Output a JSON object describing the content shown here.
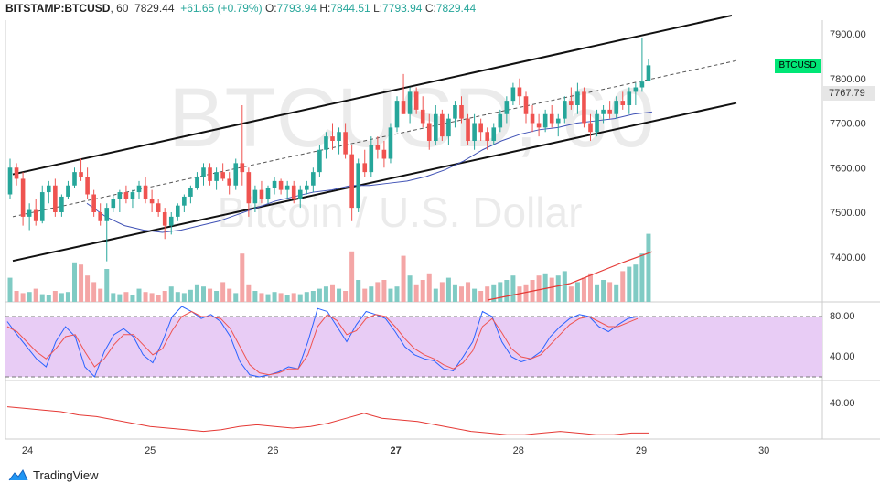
{
  "header": {
    "symbol": "BITSTAMP:BTCUSD",
    "interval": ", 60",
    "last": "7829.44",
    "change": "+61.65 (+0.79%)",
    "o_label": "O:",
    "o_value": "7793.94",
    "h_label": "H:",
    "h_value": "7844.51",
    "l_label": "L:",
    "l_value": "7793.94",
    "c_label": "C:",
    "c_value": "7829.44"
  },
  "watermark": {
    "symbol": "BTCUSD, 60",
    "description": "Bitcoin / U.S. Dollar"
  },
  "badges": {
    "ticker": "BTCUSD",
    "price": "7767.79"
  },
  "brand": {
    "name": "TradingView"
  },
  "colors": {
    "up": "#26a69a",
    "down": "#ef5350",
    "vol_up": "#80cbc4",
    "vol_down": "#f4a6a6",
    "ma": "#3f51b5",
    "stoch_k": "#2962ff",
    "stoch_d": "#ef5350",
    "rsi_band": "#e1bee7"
  },
  "chart_data": {
    "type": "candlestick",
    "price_axis": {
      "min": 7300,
      "max": 7940,
      "ticks": [
        "7900.00",
        "7800.00",
        "7700.00",
        "7600.00",
        "7500.00",
        "7400.00"
      ]
    },
    "time_axis": {
      "ticks": [
        "24",
        "25",
        "26",
        "27",
        "28",
        "29",
        "30"
      ]
    },
    "candles_ohlc": [
      [
        7540,
        7620,
        7530,
        7600
      ],
      [
        7600,
        7610,
        7560,
        7575
      ],
      [
        7575,
        7590,
        7470,
        7490
      ],
      [
        7490,
        7520,
        7460,
        7505
      ],
      [
        7505,
        7530,
        7470,
        7480
      ],
      [
        7480,
        7560,
        7475,
        7545
      ],
      [
        7545,
        7570,
        7520,
        7560
      ],
      [
        7560,
        7575,
        7490,
        7500
      ],
      [
        7500,
        7540,
        7490,
        7535
      ],
      [
        7535,
        7570,
        7530,
        7560
      ],
      [
        7560,
        7600,
        7555,
        7590
      ],
      [
        7590,
        7620,
        7570,
        7580
      ],
      [
        7580,
        7600,
        7530,
        7540
      ],
      [
        7540,
        7550,
        7490,
        7500
      ],
      [
        7500,
        7520,
        7470,
        7480
      ],
      [
        7480,
        7520,
        7390,
        7510
      ],
      [
        7510,
        7540,
        7500,
        7530
      ],
      [
        7530,
        7550,
        7500,
        7545
      ],
      [
        7545,
        7560,
        7520,
        7530
      ],
      [
        7530,
        7550,
        7510,
        7545
      ],
      [
        7545,
        7570,
        7530,
        7560
      ],
      [
        7560,
        7580,
        7520,
        7530
      ],
      [
        7530,
        7550,
        7500,
        7520
      ],
      [
        7520,
        7530,
        7490,
        7500
      ],
      [
        7500,
        7510,
        7440,
        7470
      ],
      [
        7470,
        7500,
        7450,
        7490
      ],
      [
        7490,
        7520,
        7480,
        7515
      ],
      [
        7515,
        7540,
        7500,
        7535
      ],
      [
        7535,
        7560,
        7520,
        7555
      ],
      [
        7555,
        7590,
        7550,
        7580
      ],
      [
        7580,
        7610,
        7560,
        7600
      ],
      [
        7600,
        7610,
        7560,
        7570
      ],
      [
        7570,
        7600,
        7550,
        7590
      ],
      [
        7590,
        7610,
        7570,
        7575
      ],
      [
        7575,
        7590,
        7540,
        7560
      ],
      [
        7560,
        7620,
        7550,
        7610
      ],
      [
        7610,
        7740,
        7560,
        7590
      ],
      [
        7590,
        7600,
        7490,
        7520
      ],
      [
        7520,
        7560,
        7500,
        7550
      ],
      [
        7550,
        7570,
        7520,
        7530
      ],
      [
        7530,
        7560,
        7520,
        7555
      ],
      [
        7555,
        7580,
        7540,
        7570
      ],
      [
        7570,
        7575,
        7540,
        7550
      ],
      [
        7550,
        7570,
        7530,
        7560
      ],
      [
        7560,
        7570,
        7520,
        7530
      ],
      [
        7530,
        7560,
        7510,
        7550
      ],
      [
        7550,
        7570,
        7540,
        7560
      ],
      [
        7560,
        7600,
        7545,
        7590
      ],
      [
        7590,
        7650,
        7580,
        7640
      ],
      [
        7640,
        7680,
        7620,
        7670
      ],
      [
        7670,
        7700,
        7640,
        7660
      ],
      [
        7660,
        7690,
        7630,
        7680
      ],
      [
        7680,
        7700,
        7620,
        7630
      ],
      [
        7630,
        7650,
        7480,
        7510
      ],
      [
        7510,
        7620,
        7500,
        7610
      ],
      [
        7610,
        7640,
        7580,
        7590
      ],
      [
        7590,
        7670,
        7580,
        7650
      ],
      [
        7650,
        7670,
        7620,
        7640
      ],
      [
        7640,
        7660,
        7600,
        7620
      ],
      [
        7620,
        7700,
        7610,
        7690
      ],
      [
        7690,
        7760,
        7680,
        7750
      ],
      [
        7750,
        7810,
        7720,
        7720
      ],
      [
        7720,
        7780,
        7700,
        7770
      ],
      [
        7770,
        7780,
        7720,
        7730
      ],
      [
        7730,
        7760,
        7690,
        7700
      ],
      [
        7700,
        7720,
        7640,
        7660
      ],
      [
        7660,
        7740,
        7650,
        7720
      ],
      [
        7720,
        7730,
        7660,
        7670
      ],
      [
        7670,
        7720,
        7650,
        7710
      ],
      [
        7710,
        7750,
        7690,
        7740
      ],
      [
        7740,
        7760,
        7700,
        7710
      ],
      [
        7710,
        7720,
        7650,
        7660
      ],
      [
        7660,
        7720,
        7640,
        7700
      ],
      [
        7700,
        7710,
        7660,
        7680
      ],
      [
        7680,
        7690,
        7640,
        7660
      ],
      [
        7660,
        7700,
        7650,
        7690
      ],
      [
        7690,
        7730,
        7680,
        7720
      ],
      [
        7720,
        7760,
        7700,
        7750
      ],
      [
        7750,
        7790,
        7740,
        7780
      ],
      [
        7780,
        7800,
        7740,
        7760
      ],
      [
        7760,
        7770,
        7700,
        7720
      ],
      [
        7720,
        7740,
        7680,
        7700
      ],
      [
        7700,
        7720,
        7670,
        7690
      ],
      [
        7690,
        7730,
        7680,
        7720
      ],
      [
        7720,
        7740,
        7690,
        7700
      ],
      [
        7700,
        7720,
        7670,
        7710
      ],
      [
        7710,
        7760,
        7700,
        7750
      ],
      [
        7750,
        7780,
        7730,
        7740
      ],
      [
        7740,
        7790,
        7720,
        7770
      ],
      [
        7770,
        7780,
        7690,
        7700
      ],
      [
        7700,
        7720,
        7660,
        7680
      ],
      [
        7680,
        7730,
        7670,
        7720
      ],
      [
        7720,
        7740,
        7700,
        7730
      ],
      [
        7730,
        7750,
        7710,
        7720
      ],
      [
        7720,
        7760,
        7710,
        7750
      ],
      [
        7750,
        7770,
        7730,
        7740
      ],
      [
        7740,
        7780,
        7720,
        7770
      ],
      [
        7770,
        7790,
        7740,
        7780
      ],
      [
        7780,
        7890,
        7770,
        7793
      ],
      [
        7793.94,
        7844.51,
        7793.94,
        7829.44
      ]
    ],
    "volume": [
      22,
      10,
      8,
      9,
      12,
      7,
      6,
      10,
      8,
      9,
      36,
      34,
      24,
      18,
      12,
      30,
      8,
      7,
      9,
      6,
      12,
      9,
      8,
      6,
      10,
      14,
      9,
      8,
      11,
      16,
      14,
      12,
      10,
      18,
      12,
      8,
      44,
      16,
      10,
      8,
      7,
      9,
      8,
      6,
      8,
      7,
      9,
      10,
      12,
      14,
      16,
      12,
      10,
      46,
      20,
      12,
      14,
      18,
      20,
      12,
      14,
      42,
      24,
      16,
      20,
      26,
      12,
      18,
      22,
      16,
      14,
      18,
      12,
      10,
      14,
      16,
      18,
      20,
      24,
      14,
      16,
      20,
      24,
      26,
      22,
      24,
      28,
      14,
      18,
      22,
      26,
      16,
      20,
      18,
      16,
      28,
      32,
      34,
      44,
      62
    ],
    "volume_ma": [
      0,
      5,
      10,
      15,
      25,
      35,
      44
    ],
    "trend_channel": {
      "upper": [
        7585,
        7935
      ],
      "lower": [
        7395,
        7745
      ],
      "mid": [
        7490,
        7840
      ]
    },
    "moving_average": [
      7520,
      7490,
      7470,
      7460,
      7455,
      7460,
      7470,
      7480,
      7495,
      7510,
      7525,
      7535,
      7545,
      7550,
      7560,
      7560,
      7565,
      7570,
      7580,
      7595,
      7615,
      7640,
      7660,
      7675,
      7685,
      7690,
      7700,
      7705,
      7710,
      7720,
      7725
    ],
    "stoch_axis": [
      "80.00",
      "40.00"
    ],
    "stoch_k": [
      75,
      62,
      50,
      38,
      30,
      55,
      70,
      60,
      30,
      20,
      45,
      62,
      68,
      60,
      42,
      34,
      55,
      80,
      90,
      85,
      78,
      82,
      75,
      60,
      35,
      22,
      20,
      22,
      25,
      30,
      28,
      55,
      88,
      85,
      70,
      55,
      72,
      85,
      82,
      78,
      65,
      50,
      42,
      38,
      36,
      28,
      26,
      40,
      55,
      85,
      80,
      55,
      40,
      35,
      38,
      45,
      60,
      70,
      78,
      82,
      80,
      70,
      65,
      72,
      78,
      80
    ],
    "stoch_d": [
      70,
      65,
      55,
      45,
      38,
      48,
      60,
      62,
      45,
      30,
      38,
      52,
      62,
      62,
      52,
      42,
      48,
      66,
      80,
      85,
      80,
      80,
      78,
      68,
      50,
      32,
      24,
      22,
      24,
      28,
      28,
      42,
      70,
      82,
      76,
      62,
      66,
      78,
      82,
      80,
      70,
      58,
      48,
      42,
      38,
      32,
      28,
      34,
      46,
      70,
      78,
      64,
      48,
      40,
      38,
      42,
      52,
      62,
      72,
      78,
      80,
      75,
      70,
      70,
      74,
      78
    ],
    "lower_axis": [
      "40.00"
    ],
    "lower_indicator": [
      38,
      37,
      36,
      35,
      33,
      32,
      30,
      28,
      26,
      25,
      24,
      23,
      24,
      26,
      27,
      26,
      25,
      26,
      28,
      31,
      34,
      31,
      30,
      29,
      27,
      25,
      23,
      22,
      21,
      21,
      22,
      23,
      22,
      21,
      21,
      22,
      22
    ]
  }
}
